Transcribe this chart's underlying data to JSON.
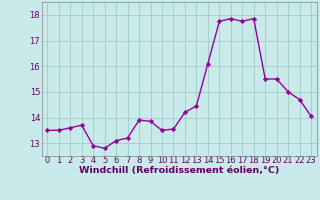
{
  "x": [
    0,
    1,
    2,
    3,
    4,
    5,
    6,
    7,
    8,
    9,
    10,
    11,
    12,
    13,
    14,
    15,
    16,
    17,
    18,
    19,
    20,
    21,
    22,
    23
  ],
  "y": [
    13.5,
    13.5,
    13.6,
    13.7,
    12.9,
    12.8,
    13.1,
    13.2,
    13.9,
    13.85,
    13.5,
    13.55,
    14.2,
    14.45,
    16.1,
    17.75,
    17.85,
    17.75,
    17.85,
    15.5,
    15.5,
    15.0,
    14.7,
    14.05
  ],
  "line_color": "#990099",
  "marker": "D",
  "markersize": 2.2,
  "linewidth": 1.0,
  "bg_color": "#c8eaea",
  "grid_color": "#a0cccc",
  "xlabel": "Windchill (Refroidissement éolien,°C)",
  "xlabel_fontsize": 6.8,
  "tick_fontsize": 6.0,
  "ylim": [
    12.5,
    18.5
  ],
  "xlim": [
    -0.5,
    23.5
  ],
  "yticks": [
    13,
    14,
    15,
    16,
    17,
    18
  ],
  "xticks": [
    0,
    1,
    2,
    3,
    4,
    5,
    6,
    7,
    8,
    9,
    10,
    11,
    12,
    13,
    14,
    15,
    16,
    17,
    18,
    19,
    20,
    21,
    22,
    23
  ]
}
